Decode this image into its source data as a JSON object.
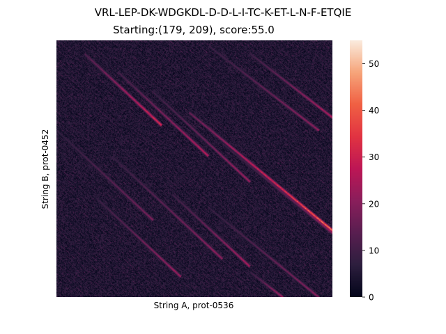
{
  "chart_data": {
    "type": "heatmap",
    "title": "VRL-LEP-DK-WDGKDL-D-D-L-I-TC-K-ET-L-N-F-ETQIE",
    "subtitle": "Starting:(179, 209), score:55.0",
    "xlabel": "String A, prot-0536",
    "ylabel": "String B, prot-0452",
    "x_ticks_shown": false,
    "y_ticks_shown": false,
    "colorbar": {
      "min": 0,
      "max": 55,
      "ticks": [
        0,
        10,
        20,
        30,
        40,
        50
      ],
      "colormap": [
        "#03051a",
        "#2d1e3e",
        "#591e50",
        "#8a1e5b",
        "#bd1655",
        "#e13342",
        "#f06043",
        "#f6a47a",
        "#faebdd"
      ]
    },
    "max_score": 55.0,
    "start_cell": [
      179,
      209
    ],
    "diagonal_bands": [
      {
        "x0": 0.1,
        "y0": 0.05,
        "x1": 0.38,
        "y1": 0.33,
        "peak": 42
      },
      {
        "x0": 0.22,
        "y0": 0.12,
        "x1": 0.55,
        "y1": 0.45,
        "peak": 35
      },
      {
        "x0": 0.35,
        "y0": 0.2,
        "x1": 0.7,
        "y1": 0.55,
        "peak": 30
      },
      {
        "x0": 0.48,
        "y0": 0.28,
        "x1": 1.0,
        "y1": 0.74,
        "peak": 55
      },
      {
        "x0": 0.7,
        "y0": 0.05,
        "x1": 1.0,
        "y1": 0.3,
        "peak": 33
      },
      {
        "x0": 0.55,
        "y0": 0.02,
        "x1": 0.95,
        "y1": 0.35,
        "peak": 28
      },
      {
        "x0": 0.42,
        "y0": 0.6,
        "x1": 0.7,
        "y1": 0.88,
        "peak": 32
      },
      {
        "x0": 0.15,
        "y0": 0.62,
        "x1": 0.45,
        "y1": 0.92,
        "peak": 30
      },
      {
        "x0": 0.2,
        "y0": 0.45,
        "x1": 0.6,
        "y1": 0.85,
        "peak": 28
      },
      {
        "x0": 0.0,
        "y0": 0.35,
        "x1": 0.35,
        "y1": 0.7,
        "peak": 24
      },
      {
        "x0": 0.55,
        "y0": 0.65,
        "x1": 0.95,
        "y1": 1.0,
        "peak": 26
      },
      {
        "x0": 0.7,
        "y0": 0.9,
        "x1": 0.82,
        "y1": 1.0,
        "peak": 30
      },
      {
        "x0": 0.6,
        "y0": 0.4,
        "x1": 1.0,
        "y1": 0.75,
        "peak": 26
      }
    ]
  }
}
